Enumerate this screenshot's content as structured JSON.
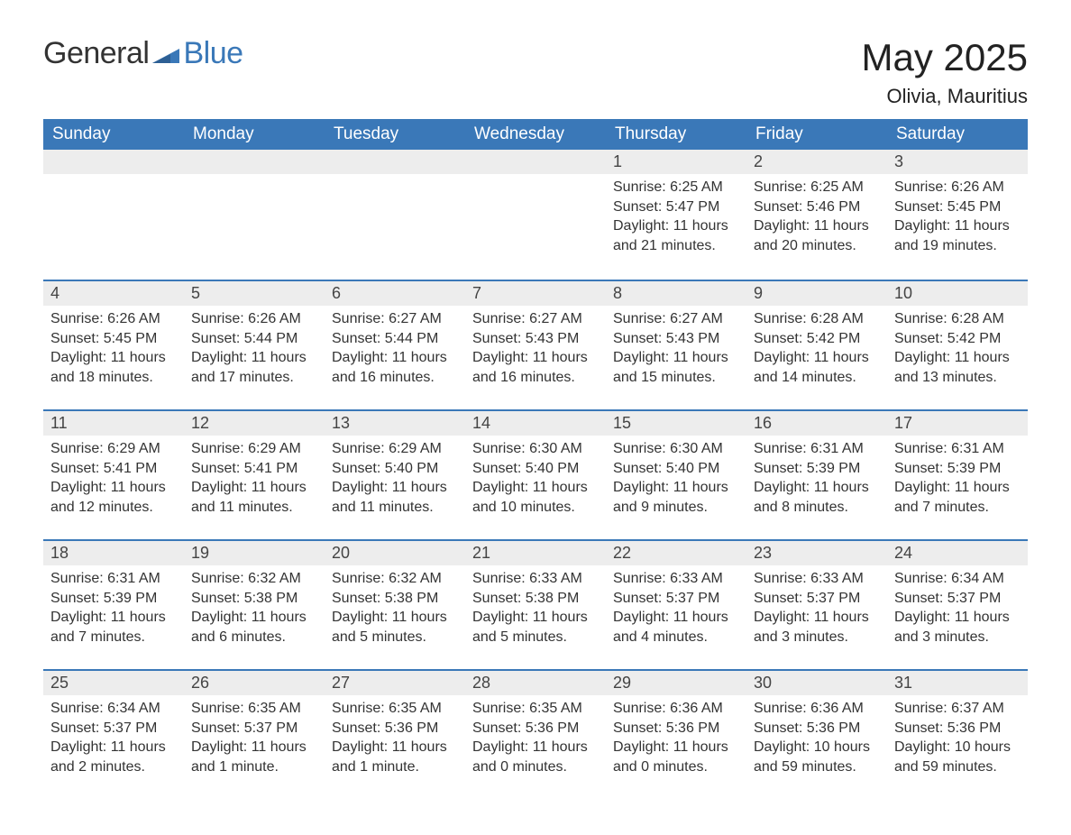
{
  "brand": {
    "part1": "General",
    "part2": "Blue"
  },
  "title": "May 2025",
  "location": "Olivia, Mauritius",
  "colors": {
    "header_bg": "#3a78b8",
    "header_fg": "#ffffff",
    "daynum_bg": "#ededed",
    "row_border": "#3a78b8",
    "text": "#333333",
    "logo_blue": "#3a78b8"
  },
  "day_headers": [
    "Sunday",
    "Monday",
    "Tuesday",
    "Wednesday",
    "Thursday",
    "Friday",
    "Saturday"
  ],
  "weeks": [
    [
      null,
      null,
      null,
      null,
      {
        "n": "1",
        "sunrise": "Sunrise: 6:25 AM",
        "sunset": "Sunset: 5:47 PM",
        "day1": "Daylight: 11 hours",
        "day2": "and 21 minutes."
      },
      {
        "n": "2",
        "sunrise": "Sunrise: 6:25 AM",
        "sunset": "Sunset: 5:46 PM",
        "day1": "Daylight: 11 hours",
        "day2": "and 20 minutes."
      },
      {
        "n": "3",
        "sunrise": "Sunrise: 6:26 AM",
        "sunset": "Sunset: 5:45 PM",
        "day1": "Daylight: 11 hours",
        "day2": "and 19 minutes."
      }
    ],
    [
      {
        "n": "4",
        "sunrise": "Sunrise: 6:26 AM",
        "sunset": "Sunset: 5:45 PM",
        "day1": "Daylight: 11 hours",
        "day2": "and 18 minutes."
      },
      {
        "n": "5",
        "sunrise": "Sunrise: 6:26 AM",
        "sunset": "Sunset: 5:44 PM",
        "day1": "Daylight: 11 hours",
        "day2": "and 17 minutes."
      },
      {
        "n": "6",
        "sunrise": "Sunrise: 6:27 AM",
        "sunset": "Sunset: 5:44 PM",
        "day1": "Daylight: 11 hours",
        "day2": "and 16 minutes."
      },
      {
        "n": "7",
        "sunrise": "Sunrise: 6:27 AM",
        "sunset": "Sunset: 5:43 PM",
        "day1": "Daylight: 11 hours",
        "day2": "and 16 minutes."
      },
      {
        "n": "8",
        "sunrise": "Sunrise: 6:27 AM",
        "sunset": "Sunset: 5:43 PM",
        "day1": "Daylight: 11 hours",
        "day2": "and 15 minutes."
      },
      {
        "n": "9",
        "sunrise": "Sunrise: 6:28 AM",
        "sunset": "Sunset: 5:42 PM",
        "day1": "Daylight: 11 hours",
        "day2": "and 14 minutes."
      },
      {
        "n": "10",
        "sunrise": "Sunrise: 6:28 AM",
        "sunset": "Sunset: 5:42 PM",
        "day1": "Daylight: 11 hours",
        "day2": "and 13 minutes."
      }
    ],
    [
      {
        "n": "11",
        "sunrise": "Sunrise: 6:29 AM",
        "sunset": "Sunset: 5:41 PM",
        "day1": "Daylight: 11 hours",
        "day2": "and 12 minutes."
      },
      {
        "n": "12",
        "sunrise": "Sunrise: 6:29 AM",
        "sunset": "Sunset: 5:41 PM",
        "day1": "Daylight: 11 hours",
        "day2": "and 11 minutes."
      },
      {
        "n": "13",
        "sunrise": "Sunrise: 6:29 AM",
        "sunset": "Sunset: 5:40 PM",
        "day1": "Daylight: 11 hours",
        "day2": "and 11 minutes."
      },
      {
        "n": "14",
        "sunrise": "Sunrise: 6:30 AM",
        "sunset": "Sunset: 5:40 PM",
        "day1": "Daylight: 11 hours",
        "day2": "and 10 minutes."
      },
      {
        "n": "15",
        "sunrise": "Sunrise: 6:30 AM",
        "sunset": "Sunset: 5:40 PM",
        "day1": "Daylight: 11 hours",
        "day2": "and 9 minutes."
      },
      {
        "n": "16",
        "sunrise": "Sunrise: 6:31 AM",
        "sunset": "Sunset: 5:39 PM",
        "day1": "Daylight: 11 hours",
        "day2": "and 8 minutes."
      },
      {
        "n": "17",
        "sunrise": "Sunrise: 6:31 AM",
        "sunset": "Sunset: 5:39 PM",
        "day1": "Daylight: 11 hours",
        "day2": "and 7 minutes."
      }
    ],
    [
      {
        "n": "18",
        "sunrise": "Sunrise: 6:31 AM",
        "sunset": "Sunset: 5:39 PM",
        "day1": "Daylight: 11 hours",
        "day2": "and 7 minutes."
      },
      {
        "n": "19",
        "sunrise": "Sunrise: 6:32 AM",
        "sunset": "Sunset: 5:38 PM",
        "day1": "Daylight: 11 hours",
        "day2": "and 6 minutes."
      },
      {
        "n": "20",
        "sunrise": "Sunrise: 6:32 AM",
        "sunset": "Sunset: 5:38 PM",
        "day1": "Daylight: 11 hours",
        "day2": "and 5 minutes."
      },
      {
        "n": "21",
        "sunrise": "Sunrise: 6:33 AM",
        "sunset": "Sunset: 5:38 PM",
        "day1": "Daylight: 11 hours",
        "day2": "and 5 minutes."
      },
      {
        "n": "22",
        "sunrise": "Sunrise: 6:33 AM",
        "sunset": "Sunset: 5:37 PM",
        "day1": "Daylight: 11 hours",
        "day2": "and 4 minutes."
      },
      {
        "n": "23",
        "sunrise": "Sunrise: 6:33 AM",
        "sunset": "Sunset: 5:37 PM",
        "day1": "Daylight: 11 hours",
        "day2": "and 3 minutes."
      },
      {
        "n": "24",
        "sunrise": "Sunrise: 6:34 AM",
        "sunset": "Sunset: 5:37 PM",
        "day1": "Daylight: 11 hours",
        "day2": "and 3 minutes."
      }
    ],
    [
      {
        "n": "25",
        "sunrise": "Sunrise: 6:34 AM",
        "sunset": "Sunset: 5:37 PM",
        "day1": "Daylight: 11 hours",
        "day2": "and 2 minutes."
      },
      {
        "n": "26",
        "sunrise": "Sunrise: 6:35 AM",
        "sunset": "Sunset: 5:37 PM",
        "day1": "Daylight: 11 hours",
        "day2": "and 1 minute."
      },
      {
        "n": "27",
        "sunrise": "Sunrise: 6:35 AM",
        "sunset": "Sunset: 5:36 PM",
        "day1": "Daylight: 11 hours",
        "day2": "and 1 minute."
      },
      {
        "n": "28",
        "sunrise": "Sunrise: 6:35 AM",
        "sunset": "Sunset: 5:36 PM",
        "day1": "Daylight: 11 hours",
        "day2": "and 0 minutes."
      },
      {
        "n": "29",
        "sunrise": "Sunrise: 6:36 AM",
        "sunset": "Sunset: 5:36 PM",
        "day1": "Daylight: 11 hours",
        "day2": "and 0 minutes."
      },
      {
        "n": "30",
        "sunrise": "Sunrise: 6:36 AM",
        "sunset": "Sunset: 5:36 PM",
        "day1": "Daylight: 10 hours",
        "day2": "and 59 minutes."
      },
      {
        "n": "31",
        "sunrise": "Sunrise: 6:37 AM",
        "sunset": "Sunset: 5:36 PM",
        "day1": "Daylight: 10 hours",
        "day2": "and 59 minutes."
      }
    ]
  ]
}
